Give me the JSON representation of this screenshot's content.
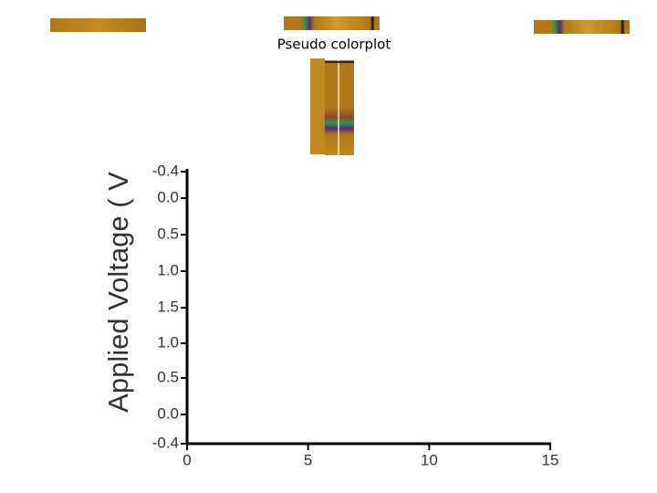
{
  "caption": "Pseudo colorplot",
  "y_axis": {
    "title": "Applied Voltage ( V",
    "tick_labels": [
      "-0.4",
      "0.0",
      "0.5",
      "1.0",
      "1.5",
      "1.0",
      "0.5",
      "0.0",
      "-0.4"
    ]
  },
  "x_axis": {
    "tick_labels": [
      "0",
      "5",
      "10",
      "15"
    ]
  }
}
